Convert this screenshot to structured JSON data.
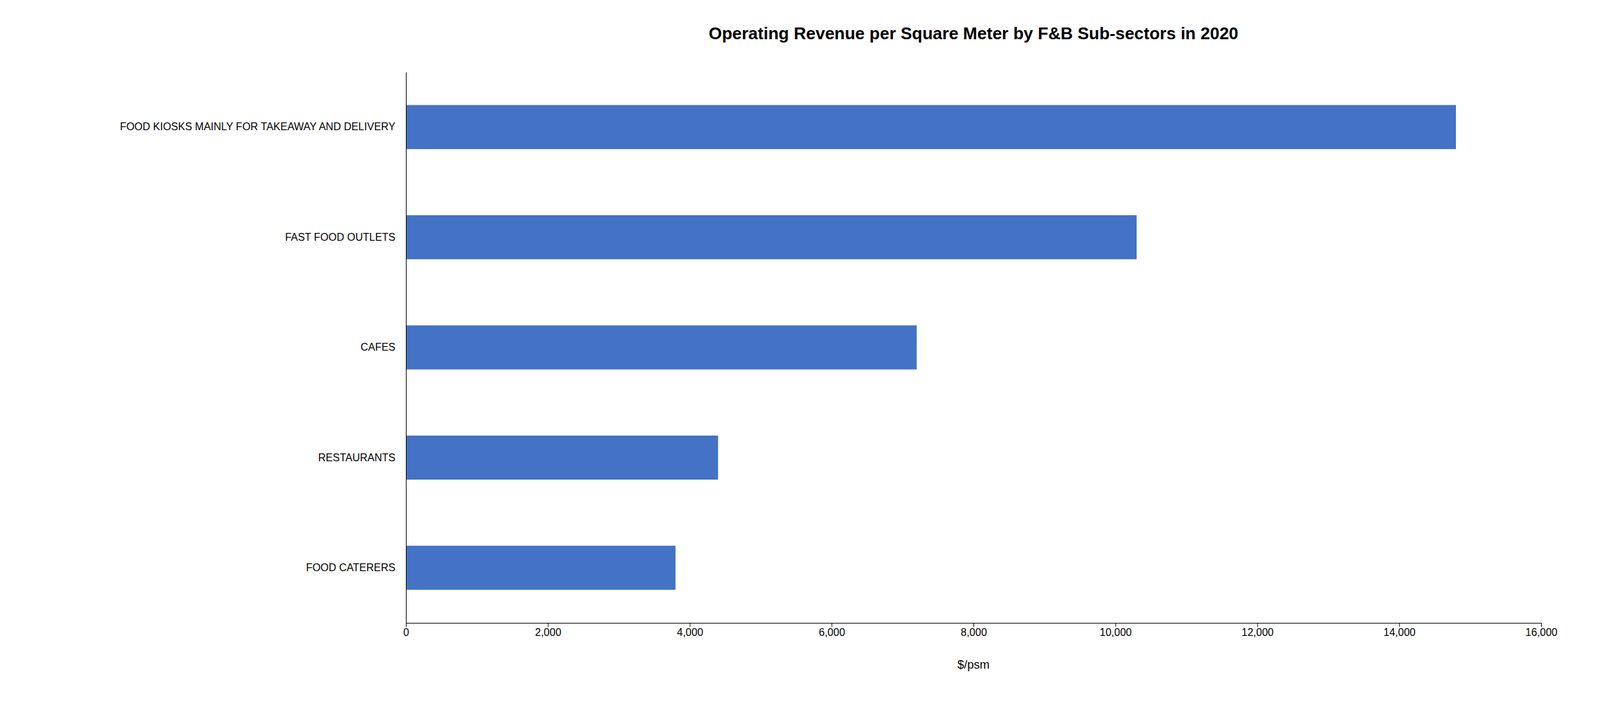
{
  "chart_data": {
    "type": "bar",
    "orientation": "horizontal",
    "title": "Operating Revenue per Square Meter by F&B Sub-sectors in 2020",
    "xlabel": "$/psm",
    "categories": [
      "FOOD CATERERS",
      "RESTAURANTS",
      "CAFES",
      "FAST FOOD OUTLETS",
      "FOOD KIOSKS MAINLY FOR TAKEAWAY AND DELIVERY"
    ],
    "values": [
      3800,
      4400,
      7200,
      10300,
      14800
    ],
    "color": "#4472C4",
    "xlim": [
      0,
      16000
    ],
    "xticks": [
      0,
      {
        "value": 2000,
        "label": "2,000"
      },
      {
        "value": 4000,
        "label": "4,000"
      },
      {
        "value": 6000,
        "label": "6,000"
      },
      {
        "value": 8000,
        "label": "8,000"
      },
      {
        "value": 10000,
        "label": "10,000"
      },
      {
        "value": 12000,
        "label": "12,000"
      },
      {
        "value": 14000,
        "label": "14,000"
      },
      {
        "value": 16000,
        "label": "16,000"
      }
    ],
    "grid": false
  }
}
